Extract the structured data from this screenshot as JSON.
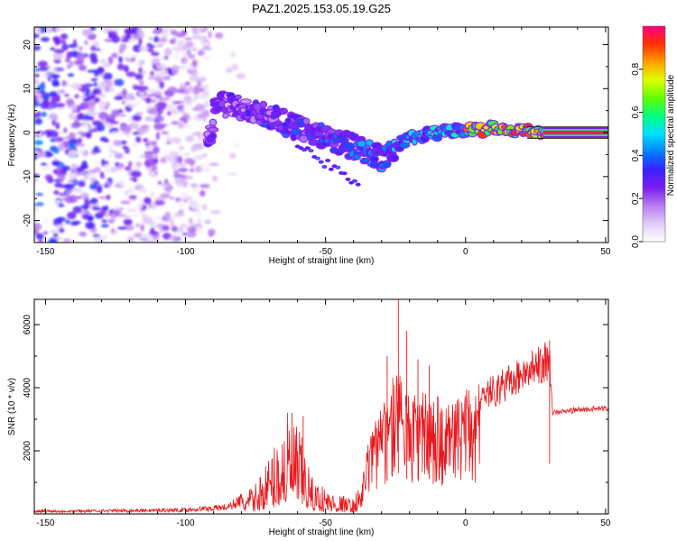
{
  "title": "PAZ1.2025.153.05.19.G25",
  "colors": {
    "trace": "#e8191e",
    "spectrum_low": "#c9a4f5",
    "spectrum_mid": "#7a1ff0",
    "axes": "#000000"
  },
  "chart_data": [
    {
      "type": "heatmap",
      "xlabel": "Height of straight line (km)",
      "ylabel": "Frequency (Hz)",
      "xlim": [
        -154,
        51
      ],
      "ylim": [
        -25,
        24
      ],
      "xticks": [
        -150,
        -100,
        -50,
        0,
        50
      ],
      "yticks": [
        -20,
        -10,
        0,
        10,
        20
      ],
      "colorbar": {
        "label": "Normalized spectral amplitude",
        "range": [
          0,
          1
        ],
        "ticks": [
          "0.0",
          "0.2",
          "0.4",
          "0.6",
          "0.8"
        ],
        "colormap": [
          "#ffffff",
          "#e2ccf7",
          "#b87cf0",
          "#7a1ff0",
          "#3a20ff",
          "#0080ff",
          "#00e0ff",
          "#00ff80",
          "#60ff00",
          "#e0ff00",
          "#ffa000",
          "#ff3000",
          "#ff0080"
        ]
      },
      "ridge": [
        {
          "x": -90,
          "f": 7
        },
        {
          "x": -75,
          "f": 5
        },
        {
          "x": -60,
          "f": 1
        },
        {
          "x": -45,
          "f": -2
        },
        {
          "x": -30,
          "f": -6
        },
        {
          "x": -20,
          "f": -1
        },
        {
          "x": -10,
          "f": 0
        },
        {
          "x": 0,
          "f": 0.5
        },
        {
          "x": 10,
          "f": 1
        },
        {
          "x": 20,
          "f": 0.5
        },
        {
          "x": 30,
          "f": 0
        },
        {
          "x": 50,
          "f": 0
        }
      ]
    },
    {
      "type": "line",
      "xlabel": "Height of straight line (km)",
      "ylabel": "SNR (10 * v/v)",
      "xlim": [
        -154,
        51
      ],
      "ylim": [
        0,
        6800
      ],
      "xticks": [
        -150,
        -100,
        -50,
        0,
        50
      ],
      "yticks": [
        2000,
        4000,
        6000
      ],
      "series": [
        {
          "envelope": [
            {
              "x": -154,
              "y": 100
            },
            {
              "x": -120,
              "y": 120
            },
            {
              "x": -100,
              "y": 150
            },
            {
              "x": -85,
              "y": 250
            },
            {
              "x": -75,
              "y": 800
            },
            {
              "x": -70,
              "y": 1600
            },
            {
              "x": -63,
              "y": 2800
            },
            {
              "x": -58,
              "y": 2000
            },
            {
              "x": -55,
              "y": 1000
            },
            {
              "x": -48,
              "y": 600
            },
            {
              "x": -40,
              "y": 400
            },
            {
              "x": -37,
              "y": 1000
            },
            {
              "x": -33,
              "y": 3000
            },
            {
              "x": -28,
              "y": 3500
            },
            {
              "x": -25,
              "y": 4500
            },
            {
              "x": -20,
              "y": 3500
            },
            {
              "x": -15,
              "y": 3800
            },
            {
              "x": -10,
              "y": 3600
            },
            {
              "x": -5,
              "y": 3300
            },
            {
              "x": 0,
              "y": 3800
            },
            {
              "x": 10,
              "y": 4200
            },
            {
              "x": 20,
              "y": 4800
            },
            {
              "x": 28,
              "y": 5200
            },
            {
              "x": 30,
              "y": 5300
            },
            {
              "x": 31,
              "y": 3200
            },
            {
              "x": 40,
              "y": 3300
            },
            {
              "x": 51,
              "y": 3350
            }
          ],
          "spikes": [
            {
              "x": -62,
              "y": 3200
            },
            {
              "x": -58,
              "y": 3100
            },
            {
              "x": -24,
              "y": 6800
            },
            {
              "x": -21,
              "y": 5800
            },
            {
              "x": -28,
              "y": 5000
            },
            {
              "x": -17,
              "y": 4900
            },
            {
              "x": -13,
              "y": 4700
            },
            {
              "x": 30,
              "y": 5500
            }
          ]
        }
      ]
    }
  ]
}
